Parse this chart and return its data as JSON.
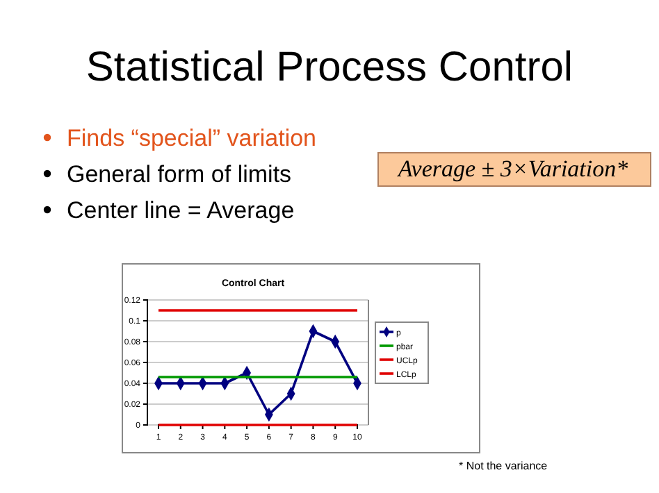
{
  "chart_data": {
    "type": "line",
    "title": "Control Chart",
    "annotations": [
      "Statistical Process Control",
      "Finds “special” variation",
      "General form of limits",
      "Center line = Average",
      "Average ± 3×Variation*",
      "* Not the variance"
    ],
    "categories": [
      "1",
      "2",
      "3",
      "4",
      "5",
      "6",
      "7",
      "8",
      "9",
      "10"
    ],
    "series": [
      {
        "name": "p",
        "color": "#000080",
        "marker": "diamond",
        "values": [
          0.04,
          0.04,
          0.04,
          0.04,
          0.05,
          0.01,
          0.03,
          0.09,
          0.08,
          0.04
        ]
      },
      {
        "name": "pbar",
        "color": "#009900",
        "values": [
          0.046,
          0.046,
          0.046,
          0.046,
          0.046,
          0.046,
          0.046,
          0.046,
          0.046,
          0.046
        ]
      },
      {
        "name": "UCLp",
        "color": "#e00000",
        "values": [
          0.11,
          0.11,
          0.11,
          0.11,
          0.11,
          0.11,
          0.11,
          0.11,
          0.11,
          0.11
        ]
      },
      {
        "name": "LCLp",
        "color": "#e00000",
        "values": [
          0,
          0,
          0,
          0,
          0,
          0,
          0,
          0,
          0,
          0
        ]
      }
    ],
    "ylim": [
      0,
      0.12
    ],
    "yticks": [
      0,
      0.02,
      0.04,
      0.06,
      0.08,
      0.1,
      0.12
    ],
    "grid": "y",
    "legend": "right"
  }
}
